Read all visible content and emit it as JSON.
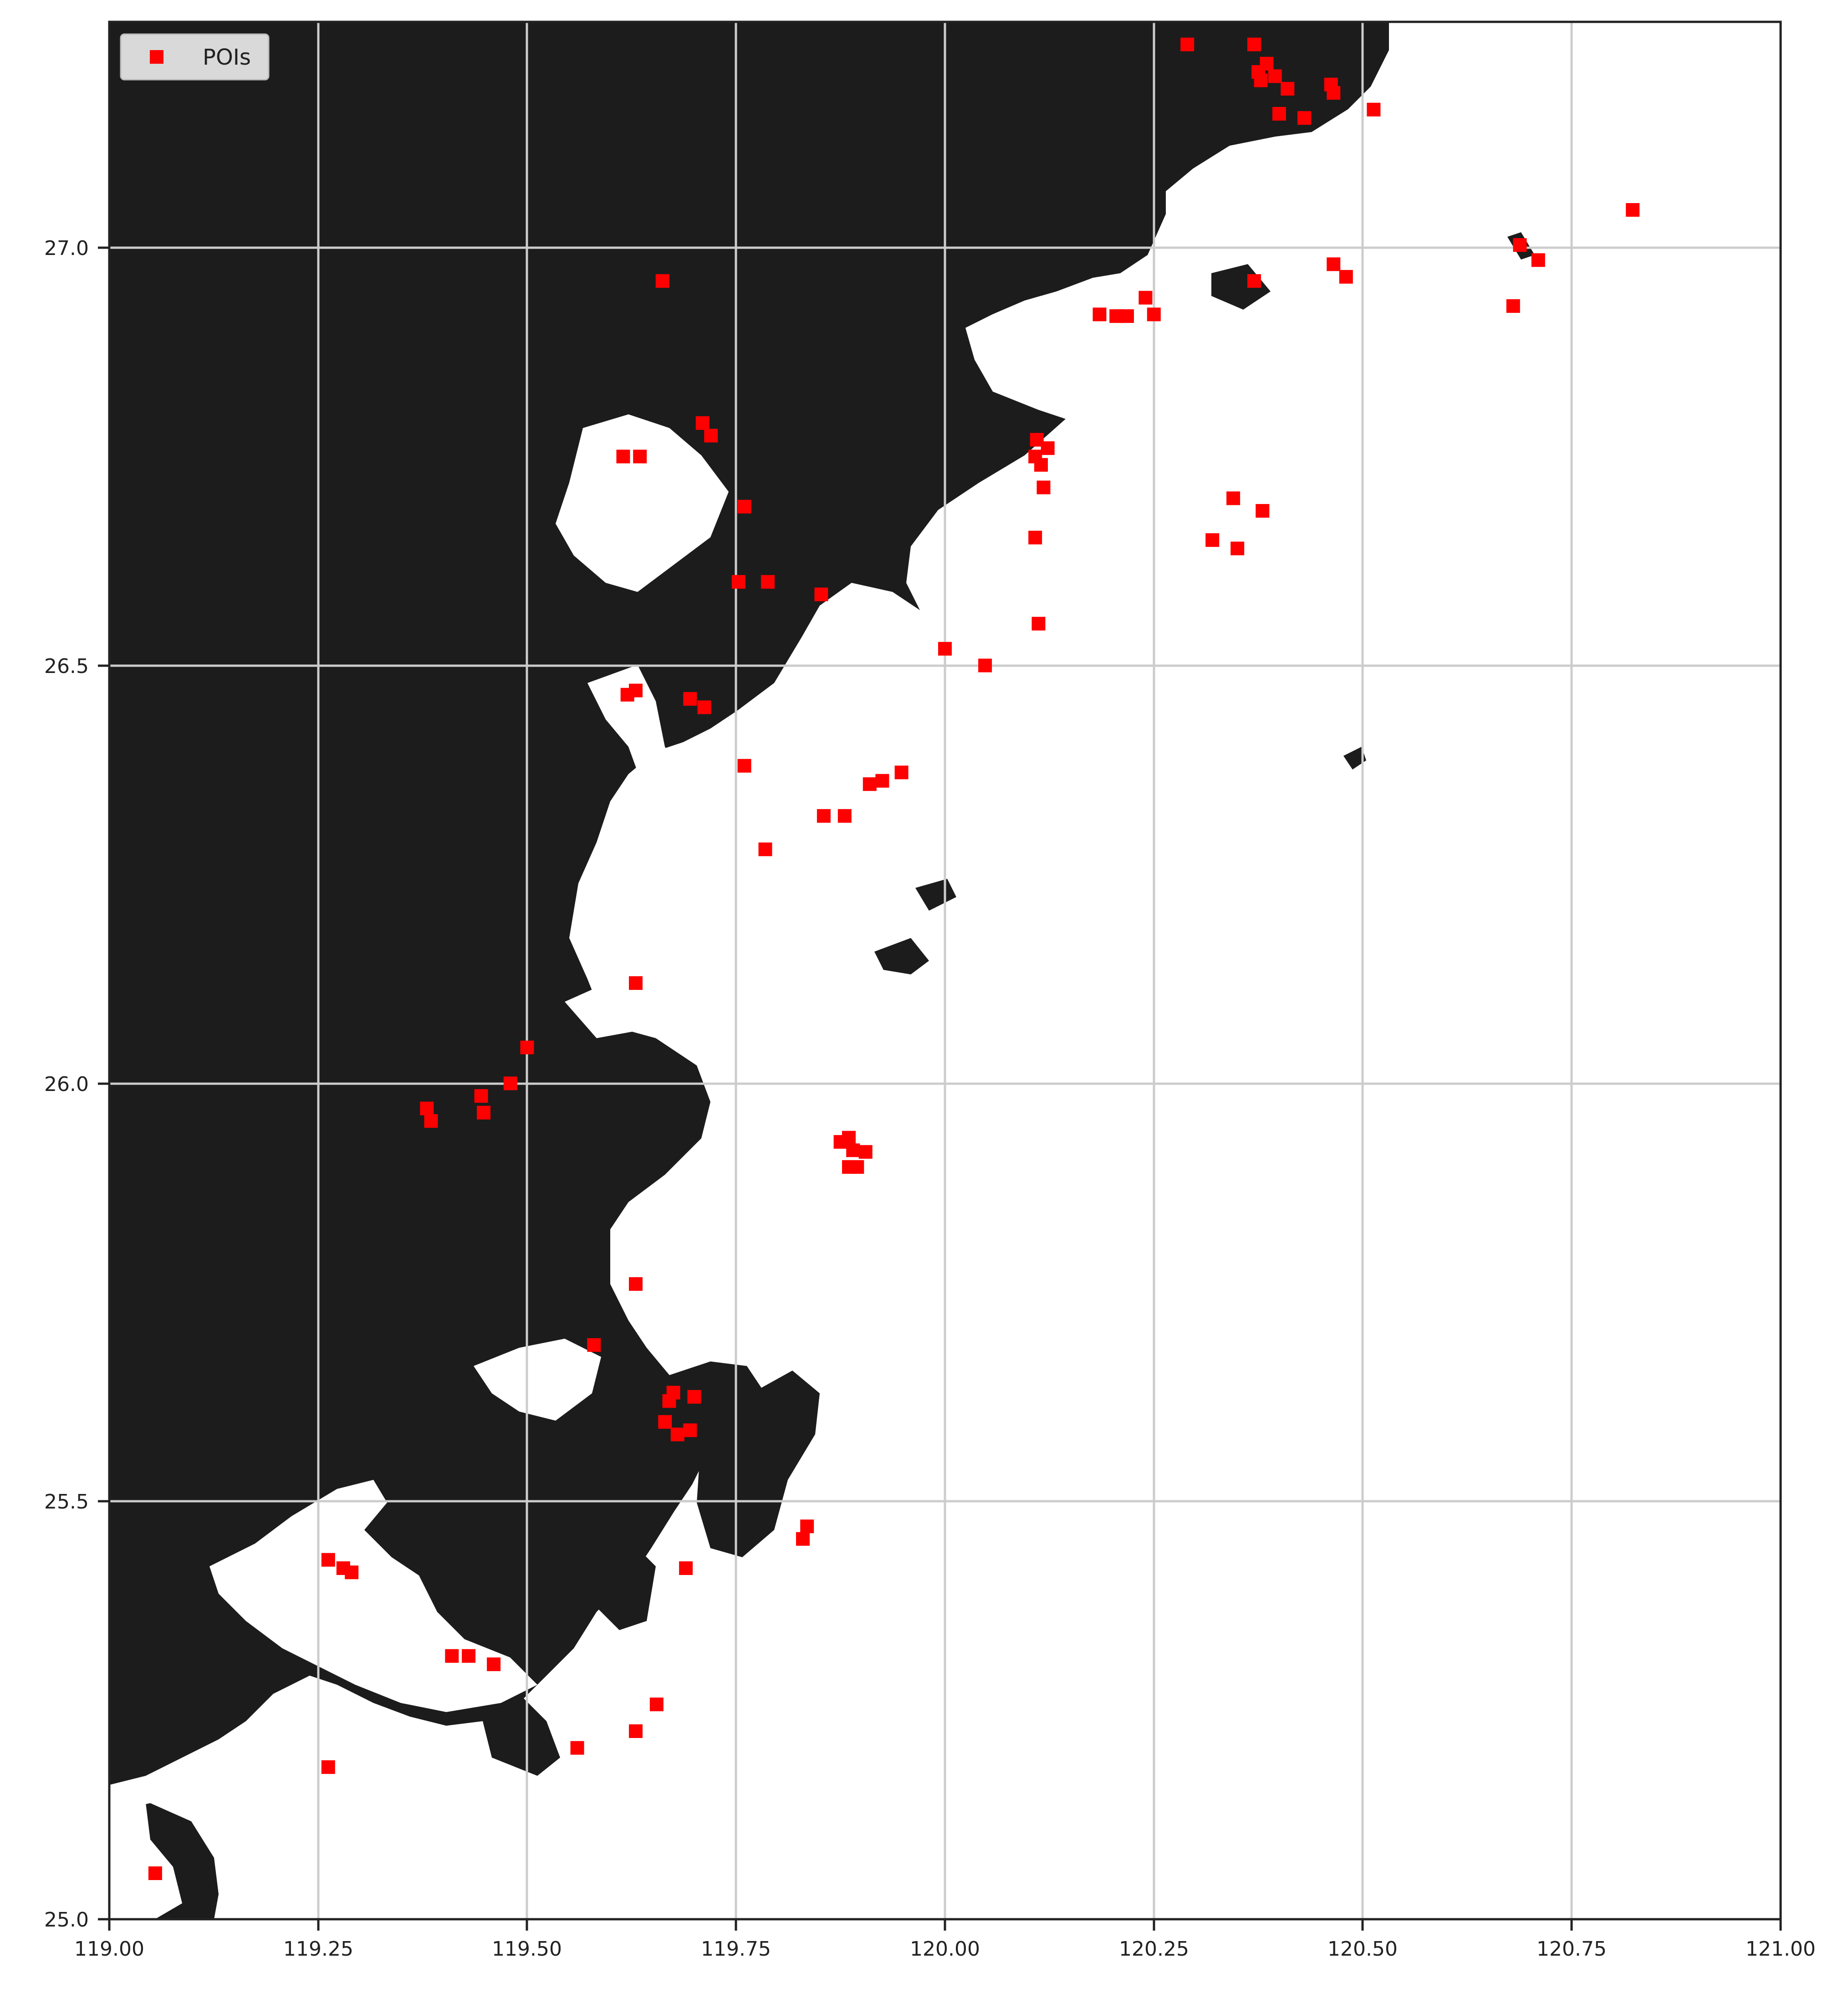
{
  "chart_data": {
    "type": "scatter",
    "x_ticks": [
      "119.00",
      "119.25",
      "119.50",
      "119.75",
      "120.00",
      "120.25",
      "120.50",
      "120.75",
      "121.00"
    ],
    "y_ticks": [
      "25.0",
      "25.5",
      "26.0",
      "26.5",
      "27.0"
    ],
    "xlim": [
      119.0,
      121.0
    ],
    "ylim": [
      25.0,
      27.27
    ],
    "grid": true,
    "legend_position": "top-left",
    "colors": {
      "land": "#1c1c1c",
      "sea": "#ffffff",
      "poi": "#ff0000",
      "grid": "#cccccc"
    },
    "series": [
      {
        "name": "POIs",
        "marker": "square",
        "points": [
          [
            119.055,
            25.055
          ],
          [
            119.262,
            25.182
          ],
          [
            119.262,
            25.43
          ],
          [
            119.28,
            25.42
          ],
          [
            119.29,
            25.415
          ],
          [
            119.41,
            25.315
          ],
          [
            119.43,
            25.315
          ],
          [
            119.46,
            25.305
          ],
          [
            119.56,
            25.205
          ],
          [
            119.63,
            25.225
          ],
          [
            119.655,
            25.257
          ],
          [
            119.69,
            25.42
          ],
          [
            119.83,
            25.455
          ],
          [
            119.835,
            25.47
          ],
          [
            119.58,
            25.687
          ],
          [
            119.63,
            25.76
          ],
          [
            119.665,
            25.595
          ],
          [
            119.67,
            25.62
          ],
          [
            119.675,
            25.63
          ],
          [
            119.68,
            25.58
          ],
          [
            119.695,
            25.585
          ],
          [
            119.7,
            25.625
          ],
          [
            119.38,
            25.97
          ],
          [
            119.385,
            25.955
          ],
          [
            119.445,
            25.985
          ],
          [
            119.448,
            25.965
          ],
          [
            119.48,
            26.0
          ],
          [
            119.5,
            26.043
          ],
          [
            119.63,
            26.12
          ],
          [
            119.62,
            26.465
          ],
          [
            119.63,
            26.47
          ],
          [
            119.695,
            26.46
          ],
          [
            119.712,
            26.45
          ],
          [
            119.76,
            26.38
          ],
          [
            119.785,
            26.28
          ],
          [
            119.855,
            26.32
          ],
          [
            119.88,
            26.32
          ],
          [
            119.91,
            26.358
          ],
          [
            119.925,
            26.362
          ],
          [
            119.948,
            26.372
          ],
          [
            119.615,
            26.75
          ],
          [
            119.635,
            26.75
          ],
          [
            119.71,
            26.79
          ],
          [
            119.72,
            26.775
          ],
          [
            119.76,
            26.69
          ],
          [
            119.753,
            26.6
          ],
          [
            119.788,
            26.6
          ],
          [
            119.852,
            26.585
          ],
          [
            119.662,
            26.96
          ],
          [
            120.0,
            26.52
          ],
          [
            120.048,
            26.5
          ],
          [
            120.112,
            26.55
          ],
          [
            120.108,
            26.653
          ],
          [
            120.108,
            26.75
          ],
          [
            120.11,
            26.77
          ],
          [
            120.115,
            26.74
          ],
          [
            120.118,
            26.713
          ],
          [
            120.123,
            26.76
          ],
          [
            119.875,
            25.93
          ],
          [
            119.885,
            25.935
          ],
          [
            119.89,
            25.92
          ],
          [
            119.895,
            25.9
          ],
          [
            119.905,
            25.918
          ],
          [
            119.885,
            25.9
          ],
          [
            120.185,
            26.92
          ],
          [
            120.205,
            26.918
          ],
          [
            120.218,
            26.918
          ],
          [
            120.24,
            26.94
          ],
          [
            120.25,
            26.92
          ],
          [
            120.32,
            26.65
          ],
          [
            120.345,
            26.7
          ],
          [
            120.35,
            26.64
          ],
          [
            120.38,
            26.685
          ],
          [
            120.29,
            27.243
          ],
          [
            120.37,
            27.243
          ],
          [
            120.375,
            27.21
          ],
          [
            120.378,
            27.2
          ],
          [
            120.385,
            27.22
          ],
          [
            120.395,
            27.205
          ],
          [
            120.4,
            27.16
          ],
          [
            120.41,
            27.19
          ],
          [
            120.43,
            27.155
          ],
          [
            120.462,
            27.195
          ],
          [
            120.465,
            27.185
          ],
          [
            120.513,
            27.165
          ],
          [
            120.37,
            26.96
          ],
          [
            120.465,
            26.98
          ],
          [
            120.48,
            26.965
          ],
          [
            120.68,
            26.93
          ],
          [
            120.688,
            27.003
          ],
          [
            120.71,
            26.985
          ],
          [
            120.823,
            27.045
          ]
        ]
      }
    ]
  }
}
